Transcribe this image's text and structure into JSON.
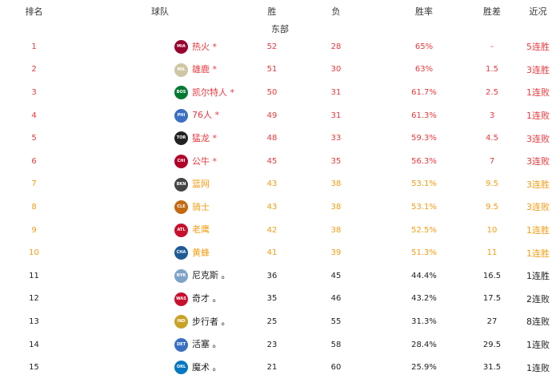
{
  "headers": [
    "排名",
    "球队",
    "胜",
    "负",
    "胜率",
    "胜差",
    "近况"
  ],
  "conference": "东部",
  "colors": {
    "playoff": "#e8383d",
    "playin": "#f39c12",
    "out": "#222222"
  },
  "rows": [
    {
      "rank": "1",
      "logo": "MIA",
      "logo_color": "#98002e",
      "team": "热火 *",
      "w": "52",
      "l": "28",
      "pct": "65%",
      "gb": "-",
      "streak": "5连胜",
      "tier": "red"
    },
    {
      "rank": "2",
      "logo": "MIL",
      "logo_color": "#cfc7a3",
      "team": "雄鹿 *",
      "w": "51",
      "l": "30",
      "pct": "63%",
      "gb": "1.5",
      "streak": "3连胜",
      "tier": "red"
    },
    {
      "rank": "3",
      "logo": "BOS",
      "logo_color": "#007a33",
      "team": "凯尔特人 *",
      "w": "50",
      "l": "31",
      "pct": "61.7%",
      "gb": "2.5",
      "streak": "1连败",
      "tier": "red"
    },
    {
      "rank": "4",
      "logo": "PHI",
      "logo_color": "#3a6fc4",
      "team": "76人 *",
      "w": "49",
      "l": "31",
      "pct": "61.3%",
      "gb": "3",
      "streak": "1连败",
      "tier": "red"
    },
    {
      "rank": "5",
      "logo": "TOR",
      "logo_color": "#222222",
      "team": "猛龙 *",
      "w": "48",
      "l": "33",
      "pct": "59.3%",
      "gb": "4.5",
      "streak": "3连败",
      "tier": "red"
    },
    {
      "rank": "6",
      "logo": "CHI",
      "logo_color": "#b0002a",
      "team": "公牛 *",
      "w": "45",
      "l": "35",
      "pct": "56.3%",
      "gb": "7",
      "streak": "3连败",
      "tier": "red"
    },
    {
      "rank": "7",
      "logo": "BKN",
      "logo_color": "#444444",
      "team": "篮网",
      "w": "43",
      "l": "38",
      "pct": "53.1%",
      "gb": "9.5",
      "streak": "3连胜",
      "tier": "orange"
    },
    {
      "rank": "8",
      "logo": "CLE",
      "logo_color": "#c46a12",
      "team": "骑士",
      "w": "43",
      "l": "38",
      "pct": "53.1%",
      "gb": "9.5",
      "streak": "3连败",
      "tier": "orange"
    },
    {
      "rank": "9",
      "logo": "ATL",
      "logo_color": "#c8102e",
      "team": "老鹰",
      "w": "42",
      "l": "38",
      "pct": "52.5%",
      "gb": "10",
      "streak": "1连胜",
      "tier": "orange"
    },
    {
      "rank": "10",
      "logo": "CHA",
      "logo_color": "#1d5a96",
      "team": "黄蜂",
      "w": "41",
      "l": "39",
      "pct": "51.3%",
      "gb": "11",
      "streak": "1连胜",
      "tier": "orange"
    },
    {
      "rank": "11",
      "logo": "NYK",
      "logo_color": "#7fa3c8",
      "team": "尼克斯 。",
      "w": "36",
      "l": "45",
      "pct": "44.4%",
      "gb": "16.5",
      "streak": "1连胜",
      "tier": "black"
    },
    {
      "rank": "12",
      "logo": "WAS",
      "logo_color": "#c8102e",
      "team": "奇才 。",
      "w": "35",
      "l": "46",
      "pct": "43.2%",
      "gb": "17.5",
      "streak": "2连败",
      "tier": "black"
    },
    {
      "rank": "13",
      "logo": "IND",
      "logo_color": "#c9a227",
      "team": "步行者 。",
      "w": "25",
      "l": "55",
      "pct": "31.3%",
      "gb": "27",
      "streak": "8连败",
      "tier": "black"
    },
    {
      "rank": "14",
      "logo": "DET",
      "logo_color": "#3a6fc4",
      "team": "活塞 。",
      "w": "23",
      "l": "58",
      "pct": "28.4%",
      "gb": "29.5",
      "streak": "1连败",
      "tier": "black"
    },
    {
      "rank": "15",
      "logo": "ORL",
      "logo_color": "#0077c0",
      "team": "魔术 。",
      "w": "21",
      "l": "60",
      "pct": "25.9%",
      "gb": "31.5",
      "streak": "1连败",
      "tier": "black"
    }
  ]
}
